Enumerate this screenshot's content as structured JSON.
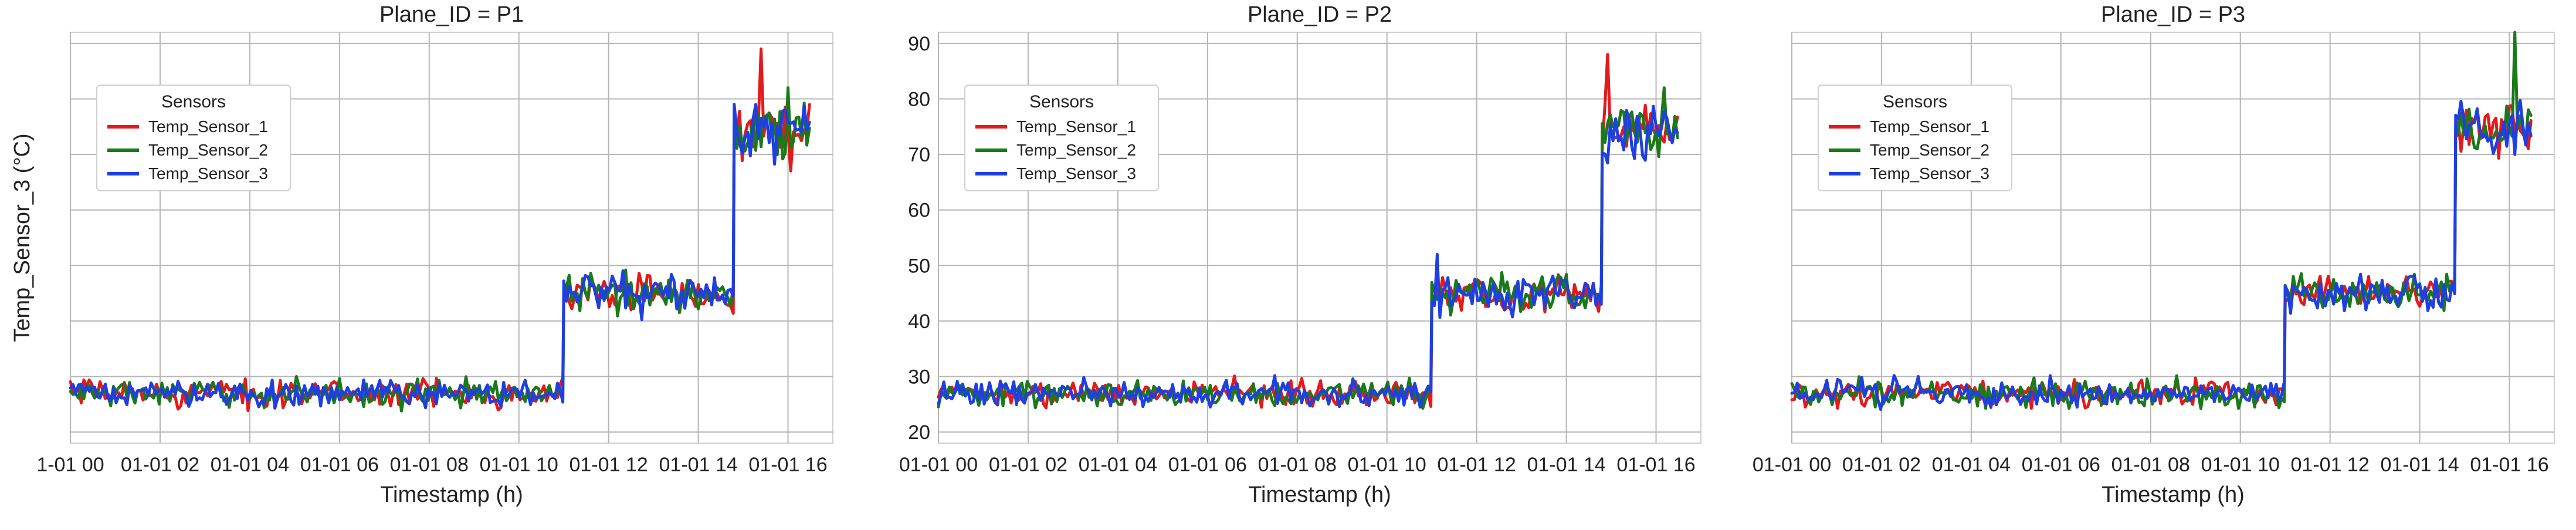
{
  "chart_data": [
    {
      "type": "line",
      "title": "Plane_ID = P1",
      "xlabel": "Timestamp (h)",
      "ylabel": "Temp_Sensor_3 (°C)",
      "show_y_tick_labels": false,
      "xlim": [
        0,
        17
      ],
      "ylim": [
        18,
        92
      ],
      "x_ticks": [
        0,
        2,
        4,
        6,
        8,
        10,
        12,
        14,
        16
      ],
      "x_tick_labels": [
        "1-01 00",
        "01-01 02",
        "01-01 04",
        "01-01 06",
        "01-01 08",
        "01-01 10",
        "01-01 12",
        "01-01 14",
        "01-01 16"
      ],
      "y_ticks": [
        20,
        30,
        40,
        50,
        60,
        70,
        80,
        90
      ],
      "grid": true,
      "legend": {
        "title": "Sensors",
        "position": "upper-left"
      },
      "series": [
        {
          "name": "Temp_Sensor_1",
          "color": "#e31a1c",
          "segments": [
            {
              "x_start": 0,
              "x_end": 11,
              "mean": 27.0,
              "amp": 3.5
            },
            {
              "x_start": 11,
              "x_end": 14.8,
              "mean": 45.0,
              "amp": 5.0
            },
            {
              "x_start": 14.8,
              "x_end": 16.5,
              "mean": 74.0,
              "amp": 8.0
            }
          ],
          "peaks": [
            {
              "x": 15.4,
              "y": 89
            }
          ]
        },
        {
          "name": "Temp_Sensor_2",
          "color": "#1a7a1a",
          "segments": [
            {
              "x_start": 0,
              "x_end": 11,
              "mean": 27.0,
              "amp": 3.5
            },
            {
              "x_start": 11,
              "x_end": 14.8,
              "mean": 45.0,
              "amp": 5.0
            },
            {
              "x_start": 14.8,
              "x_end": 16.5,
              "mean": 74.0,
              "amp": 8.0
            }
          ],
          "peaks": [
            {
              "x": 16.0,
              "y": 82
            }
          ]
        },
        {
          "name": "Temp_Sensor_3",
          "color": "#1f3fe0",
          "segments": [
            {
              "x_start": 0,
              "x_end": 11,
              "mean": 27.0,
              "amp": 3.5
            },
            {
              "x_start": 11,
              "x_end": 14.8,
              "mean": 45.0,
              "amp": 5.0
            },
            {
              "x_start": 14.8,
              "x_end": 16.5,
              "mean": 74.0,
              "amp": 8.0
            }
          ],
          "peaks": []
        }
      ]
    },
    {
      "type": "line",
      "title": "Plane_ID = P2",
      "xlabel": "Timestamp (h)",
      "ylabel": "",
      "show_y_tick_labels": true,
      "xlim": [
        0,
        17
      ],
      "ylim": [
        18,
        92
      ],
      "x_ticks": [
        0,
        2,
        4,
        6,
        8,
        10,
        12,
        14,
        16
      ],
      "x_tick_labels": [
        "01-01 00",
        "01-01 02",
        "01-01 04",
        "01-01 06",
        "01-01 08",
        "01-01 10",
        "01-01 12",
        "01-01 14",
        "01-01 16"
      ],
      "y_ticks": [
        20,
        30,
        40,
        50,
        60,
        70,
        80,
        90
      ],
      "grid": true,
      "legend": {
        "title": "Sensors",
        "position": "upper-left"
      },
      "series": [
        {
          "name": "Temp_Sensor_1",
          "color": "#e31a1c",
          "segments": [
            {
              "x_start": 0,
              "x_end": 11,
              "mean": 27.0,
              "amp": 3.5
            },
            {
              "x_start": 11,
              "x_end": 14.8,
              "mean": 45.0,
              "amp": 5.0
            },
            {
              "x_start": 14.8,
              "x_end": 16.5,
              "mean": 74.0,
              "amp": 7.0
            }
          ],
          "peaks": [
            {
              "x": 14.9,
              "y": 88
            }
          ]
        },
        {
          "name": "Temp_Sensor_2",
          "color": "#1a7a1a",
          "segments": [
            {
              "x_start": 0,
              "x_end": 11,
              "mean": 27.0,
              "amp": 3.5
            },
            {
              "x_start": 11,
              "x_end": 14.8,
              "mean": 45.0,
              "amp": 5.0
            },
            {
              "x_start": 14.8,
              "x_end": 16.5,
              "mean": 74.0,
              "amp": 7.0
            }
          ],
          "peaks": [
            {
              "x": 16.2,
              "y": 82
            }
          ]
        },
        {
          "name": "Temp_Sensor_3",
          "color": "#1f3fe0",
          "segments": [
            {
              "x_start": 0,
              "x_end": 11,
              "mean": 27.0,
              "amp": 3.5
            },
            {
              "x_start": 11,
              "x_end": 14.8,
              "mean": 45.0,
              "amp": 5.0
            },
            {
              "x_start": 14.8,
              "x_end": 16.5,
              "mean": 74.0,
              "amp": 7.0
            }
          ],
          "peaks": [
            {
              "x": 11.1,
              "y": 52
            }
          ]
        }
      ]
    },
    {
      "type": "line",
      "title": "Plane_ID = P3",
      "xlabel": "Timestamp (h)",
      "ylabel": "",
      "show_y_tick_labels": false,
      "xlim": [
        0,
        17
      ],
      "ylim": [
        18,
        92
      ],
      "x_ticks": [
        0,
        2,
        4,
        6,
        8,
        10,
        12,
        14,
        16
      ],
      "x_tick_labels": [
        "01-01 00",
        "01-01 02",
        "01-01 04",
        "01-01 06",
        "01-01 08",
        "01-01 10",
        "01-01 12",
        "01-01 14",
        "01-01 16"
      ],
      "y_ticks": [
        20,
        30,
        40,
        50,
        60,
        70,
        80,
        90
      ],
      "grid": true,
      "legend": {
        "title": "Sensors",
        "position": "upper-left"
      },
      "series": [
        {
          "name": "Temp_Sensor_1",
          "color": "#e31a1c",
          "segments": [
            {
              "x_start": 0,
              "x_end": 11,
              "mean": 27.0,
              "amp": 3.5
            },
            {
              "x_start": 11,
              "x_end": 14.8,
              "mean": 45.0,
              "amp": 4.5
            },
            {
              "x_start": 14.8,
              "x_end": 16.5,
              "mean": 75.0,
              "amp": 7.0
            }
          ],
          "peaks": []
        },
        {
          "name": "Temp_Sensor_2",
          "color": "#1a7a1a",
          "segments": [
            {
              "x_start": 0,
              "x_end": 11,
              "mean": 27.0,
              "amp": 3.5
            },
            {
              "x_start": 11,
              "x_end": 14.8,
              "mean": 45.0,
              "amp": 4.5
            },
            {
              "x_start": 14.8,
              "x_end": 16.5,
              "mean": 75.0,
              "amp": 7.0
            }
          ],
          "peaks": [
            {
              "x": 16.1,
              "y": 92
            }
          ]
        },
        {
          "name": "Temp_Sensor_3",
          "color": "#1f3fe0",
          "segments": [
            {
              "x_start": 0,
              "x_end": 11,
              "mean": 27.0,
              "amp": 3.5
            },
            {
              "x_start": 11,
              "x_end": 14.8,
              "mean": 45.0,
              "amp": 4.5
            },
            {
              "x_start": 14.8,
              "x_end": 16.5,
              "mean": 75.0,
              "amp": 7.0
            }
          ],
          "peaks": []
        }
      ]
    }
  ]
}
